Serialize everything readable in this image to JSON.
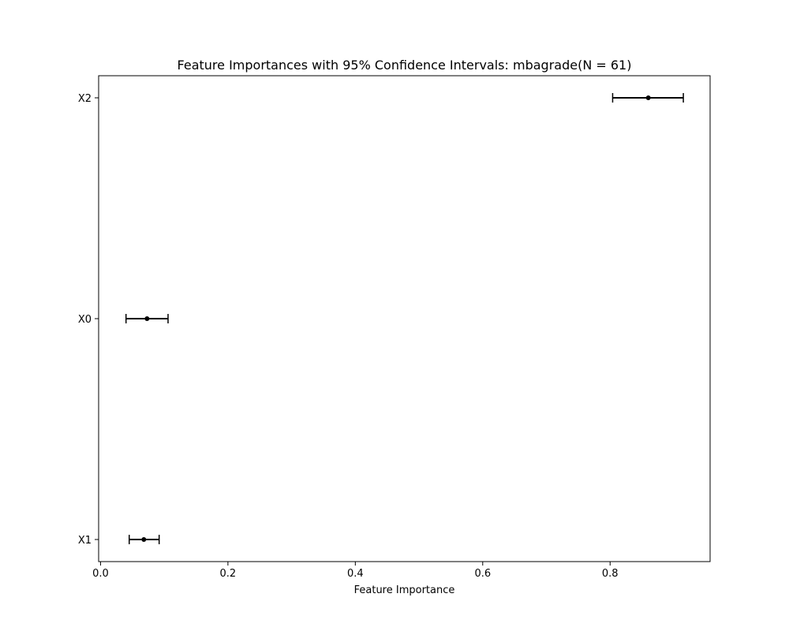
{
  "chart_data": {
    "type": "scatter",
    "title": "Feature Importances with 95% Confidence Intervals: mbagrade(N = 61)",
    "xlabel": "Feature Importance",
    "ylabel": "",
    "xlim": [
      -0.003,
      0.957
    ],
    "x_ticks": [
      "0.0",
      "0.2",
      "0.4",
      "0.6",
      "0.8"
    ],
    "x_tick_values": [
      0.0,
      0.2,
      0.4,
      0.6,
      0.8
    ],
    "categories": [
      "X1",
      "X0",
      "X2"
    ],
    "points": [
      {
        "feature": "X1",
        "value": 0.068,
        "ci_low": 0.045,
        "ci_high": 0.092
      },
      {
        "feature": "X0",
        "value": 0.073,
        "ci_low": 0.04,
        "ci_high": 0.106
      },
      {
        "feature": "X2",
        "value": 0.86,
        "ci_low": 0.804,
        "ci_high": 0.915
      }
    ],
    "grid": false,
    "marker_color": "#000000",
    "errorbar_color": "#000000"
  }
}
